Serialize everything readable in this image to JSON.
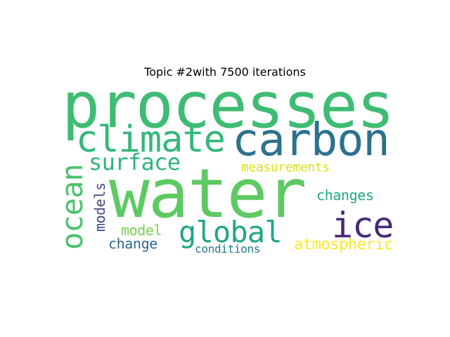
{
  "title": "Topic #2with 7500 iterations",
  "words": [
    {
      "text": "processes",
      "color": "#3fbc73"
    },
    {
      "text": "water",
      "color": "#5ec962"
    },
    {
      "text": "carbon",
      "color": "#2c728e"
    },
    {
      "text": "climate",
      "color": "#35b779"
    },
    {
      "text": "ocean",
      "color": "#4ac16d"
    },
    {
      "text": "global",
      "color": "#21a685"
    },
    {
      "text": "ice",
      "color": "#482878"
    },
    {
      "text": "surface",
      "color": "#2fb47c"
    },
    {
      "text": "measurements",
      "color": "#d8e219"
    },
    {
      "text": "changes",
      "color": "#22a884"
    },
    {
      "text": "models",
      "color": "#3e4a89"
    },
    {
      "text": "model",
      "color": "#7ad151"
    },
    {
      "text": "atmospheric",
      "color": "#fde725"
    },
    {
      "text": "change",
      "color": "#31688e"
    },
    {
      "text": "conditions",
      "color": "#2a788e"
    }
  ]
}
